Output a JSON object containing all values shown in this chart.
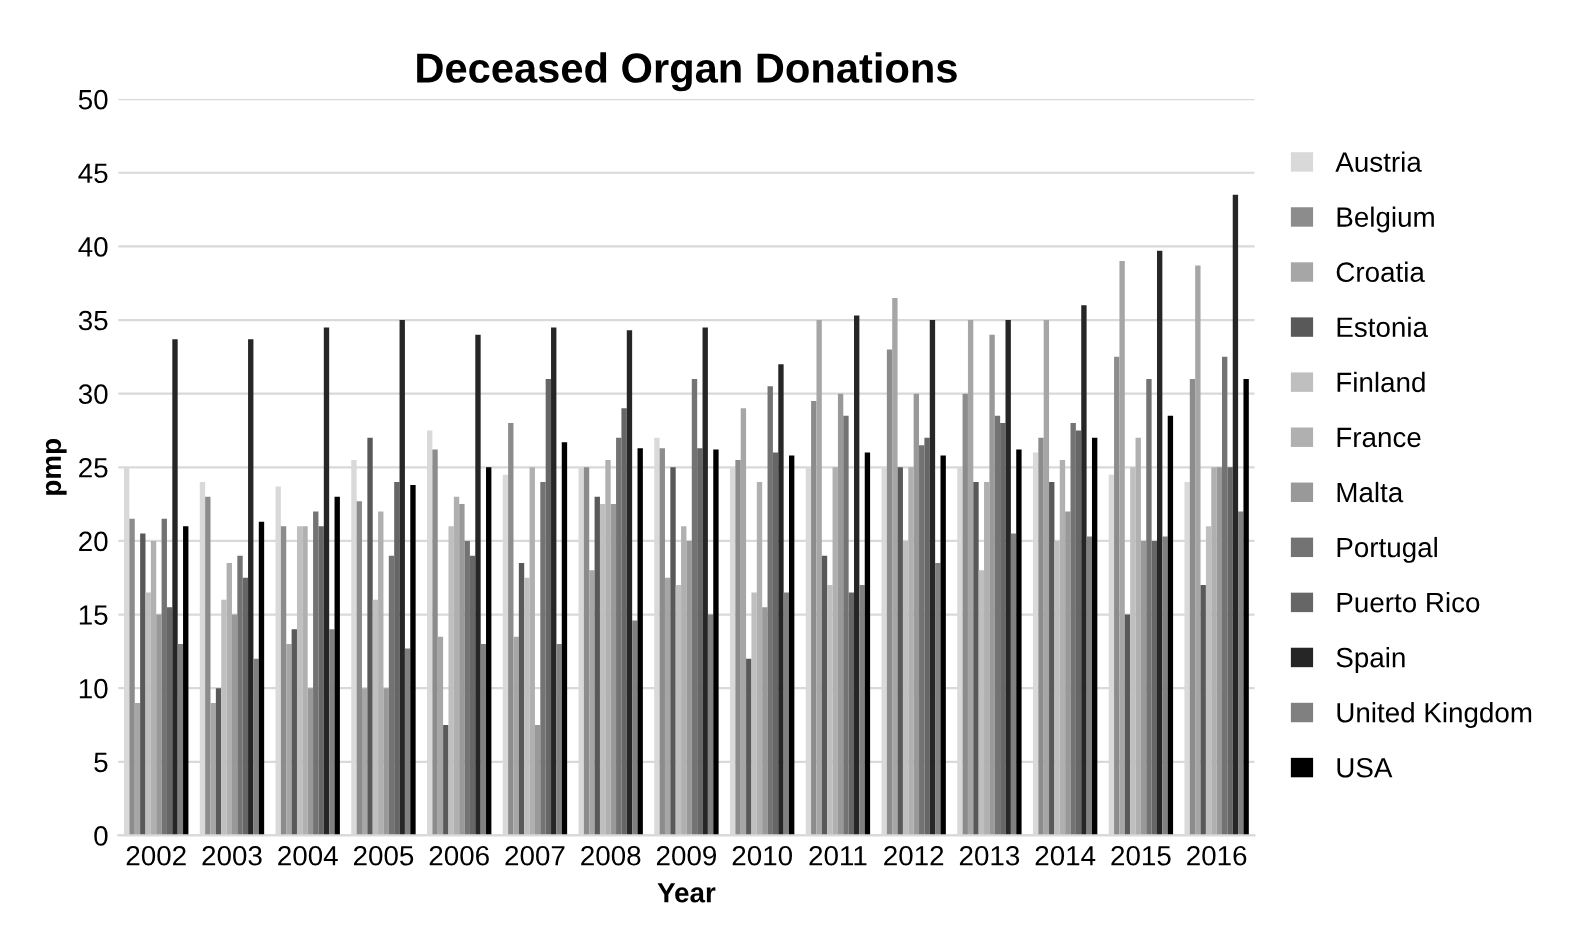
{
  "chart_data": {
    "type": "bar",
    "title": "Deceased Organ Donations",
    "xlabel": "Year",
    "ylabel": "pmp",
    "categories": [
      "2002",
      "2003",
      "2004",
      "2005",
      "2006",
      "2007",
      "2008",
      "2009",
      "2010",
      "2011",
      "2012",
      "2013",
      "2014",
      "2015",
      "2016"
    ],
    "series": [
      {
        "name": "Austria",
        "color": "#d9d9d9",
        "values": [
          25,
          24,
          23.7,
          25.5,
          27.5,
          24.5,
          25,
          27,
          25,
          25,
          25,
          25,
          26,
          24.5,
          24
        ]
      },
      {
        "name": "Belgium",
        "color": "#8c8c8c",
        "values": [
          21.5,
          23,
          21,
          22.7,
          26.2,
          28,
          25,
          26.3,
          25.5,
          29.5,
          33,
          30,
          27,
          32.5,
          31
        ]
      },
      {
        "name": "Croatia",
        "color": "#a6a6a6",
        "values": [
          9,
          9,
          13,
          10,
          13.5,
          13.5,
          18,
          17.5,
          29,
          35,
          36.5,
          35,
          35,
          39,
          38.7
        ]
      },
      {
        "name": "Estonia",
        "color": "#595959",
        "values": [
          20.5,
          10,
          14,
          27,
          7.5,
          18.5,
          23,
          25,
          12,
          19,
          25,
          24,
          24,
          15,
          17
        ]
      },
      {
        "name": "Finland",
        "color": "#bfbfbf",
        "values": [
          16.5,
          16,
          21,
          16,
          21,
          17.5,
          22.5,
          17,
          16.5,
          17,
          20,
          18,
          20,
          25,
          21
        ]
      },
      {
        "name": "France",
        "color": "#b0b0b0",
        "values": [
          20,
          18.5,
          21,
          22,
          23,
          25,
          25.5,
          21,
          24,
          25,
          25,
          24,
          25.5,
          27,
          25
        ]
      },
      {
        "name": "Malta",
        "color": "#999999",
        "values": [
          15,
          15,
          10,
          10,
          22.5,
          7.5,
          22.5,
          20,
          15.5,
          30,
          30,
          34,
          22,
          20,
          25
        ]
      },
      {
        "name": "Portugal",
        "color": "#737373",
        "values": [
          21.5,
          19,
          22,
          19,
          20,
          24,
          27,
          31,
          30.5,
          28.5,
          26.5,
          28.5,
          28,
          31,
          32.5
        ]
      },
      {
        "name": "Puerto Rico",
        "color": "#666666",
        "values": [
          15.5,
          17.5,
          21,
          24,
          19,
          31,
          29,
          26.3,
          26,
          16.5,
          27,
          28,
          27.5,
          20,
          25
        ]
      },
      {
        "name": "Spain",
        "color": "#262626",
        "values": [
          33.7,
          33.7,
          34.5,
          35,
          34,
          34.5,
          34.3,
          34.5,
          32,
          35.3,
          35,
          35,
          36,
          39.7,
          43.5
        ]
      },
      {
        "name": "United Kingdom",
        "color": "#808080",
        "values": [
          13,
          12,
          14,
          12.7,
          13,
          13,
          14.6,
          15,
          16.5,
          17,
          18.5,
          20.5,
          20.3,
          20.3,
          22
        ]
      },
      {
        "name": "USA",
        "color": "#000000",
        "values": [
          21,
          21.3,
          23,
          23.8,
          25,
          26.7,
          26.3,
          26.2,
          25.8,
          26,
          25.8,
          26.2,
          27,
          28.5,
          31
        ]
      }
    ],
    "ylim": [
      0,
      50
    ],
    "yticks": [
      0,
      5,
      10,
      15,
      20,
      25,
      30,
      35,
      40,
      45,
      50
    ],
    "grid": "y",
    "legend": "right"
  }
}
